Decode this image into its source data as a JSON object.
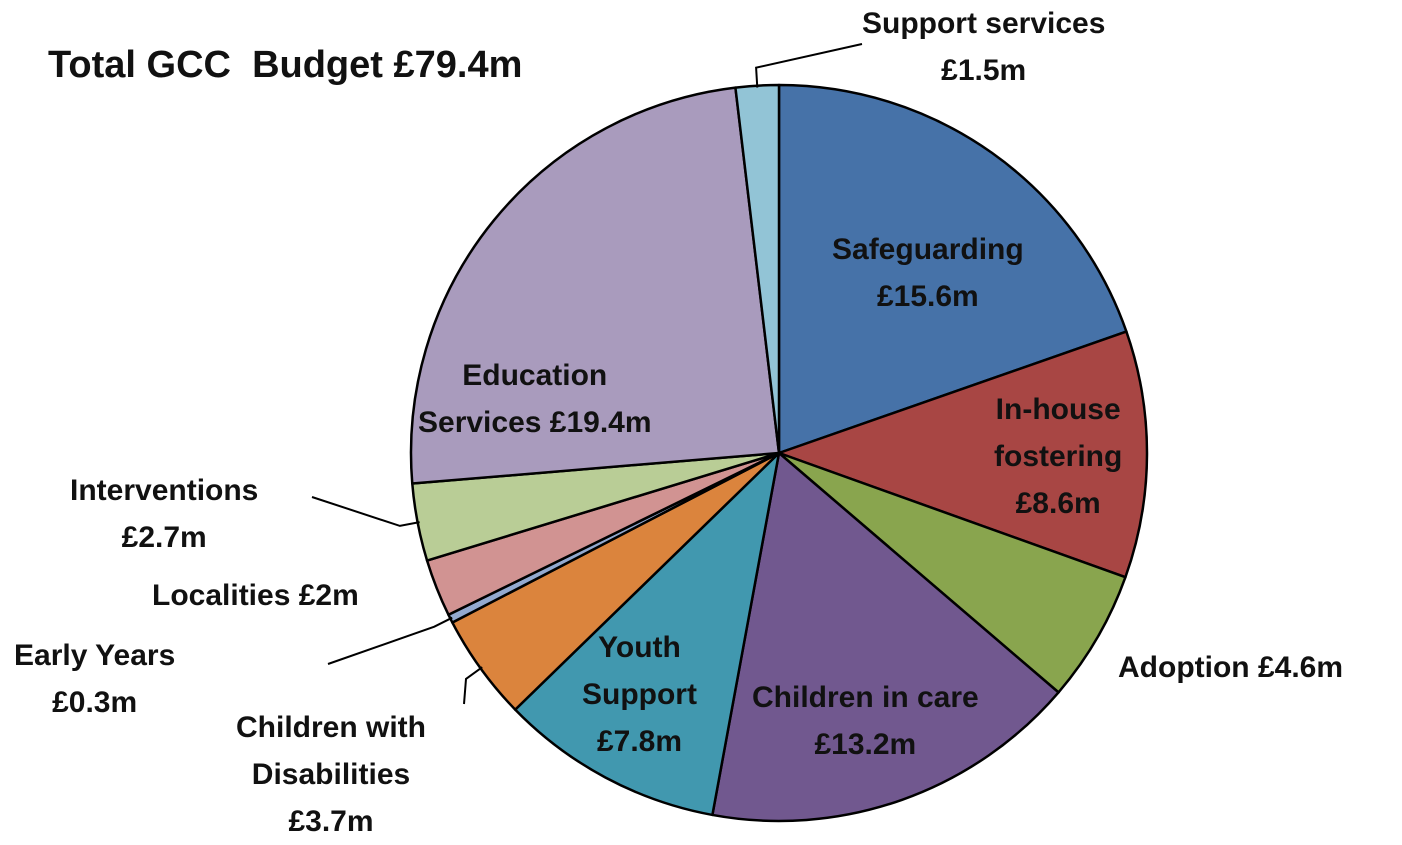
{
  "title": "Total GCC  Budget £79.4m",
  "chart_data": {
    "type": "pie",
    "title": "Total GCC  Budget £79.4m",
    "units": "£m",
    "total": 79.4,
    "start": "12 o'clock",
    "direction": "clockwise",
    "slices": [
      {
        "key": "safeguarding",
        "value": 15.6,
        "color": "#4672A8",
        "label_lines": [
          "Safeguarding",
          "£15.6m"
        ]
      },
      {
        "key": "in_house_fostering",
        "value": 8.6,
        "color": "#A84644",
        "label_lines": [
          "In-house",
          "fostering",
          "£8.6m"
        ]
      },
      {
        "key": "adoption",
        "value": 4.6,
        "color": "#89A54E",
        "label_lines": [
          "Adoption  £4.6m"
        ]
      },
      {
        "key": "children_in_care",
        "value": 13.2,
        "color": "#71588F",
        "label_lines": [
          "Children in care",
          "£13.2m"
        ]
      },
      {
        "key": "youth_support",
        "value": 7.8,
        "color": "#4198AF",
        "label_lines": [
          "Youth",
          "Support",
          "£7.8m"
        ]
      },
      {
        "key": "children_with_disabilities",
        "value": 3.7,
        "color": "#DB843D",
        "label_lines": [
          "Children with",
          "Disabilities",
          "£3.7m"
        ]
      },
      {
        "key": "early_years",
        "value": 0.3,
        "color": "#93A9CF",
        "label_lines": [
          "Early Years",
          "£0.3m"
        ]
      },
      {
        "key": "localities",
        "value": 2.0,
        "color": "#D19392",
        "label_lines": [
          "Localities £2m"
        ]
      },
      {
        "key": "interventions",
        "value": 2.7,
        "color": "#B9CD96",
        "label_lines": [
          "Interventions",
          "£2.7m"
        ]
      },
      {
        "key": "education_services",
        "value": 19.4,
        "color": "#A99BBD",
        "label_lines": [
          "Education",
          "Services £19.4m"
        ]
      },
      {
        "key": "support_services",
        "value": 1.5,
        "color": "#92C4D6",
        "label_lines": [
          "Support services",
          "£1.5m"
        ]
      }
    ]
  }
}
